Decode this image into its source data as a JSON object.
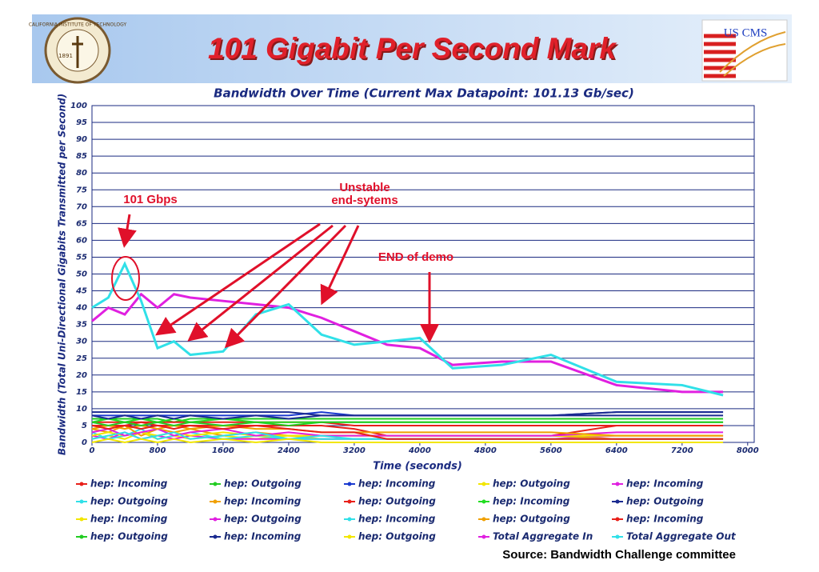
{
  "slide_title": "101 Gigabit Per Second Mark",
  "logos": {
    "left": [
      "CALIFORNIA INSTITUTE OF TECHNOLOGY",
      "1891"
    ],
    "right": "US CMS"
  },
  "source": "Source: Bandwidth Challenge committee",
  "chart_data": {
    "type": "line",
    "title": "Bandwidth Over Time (Current Max Datapoint: 101.13 Gb/sec)",
    "x_label": "Time (seconds)",
    "y_label": "Bandwidth (Total Uni-Directional Gigabits Transmitted per Second)",
    "annotations": [
      "101 Gbps",
      "Unstable",
      "end-sytems",
      "END of demo"
    ],
    "xlim": [
      0,
      8080
    ],
    "xticks": [
      0,
      800,
      1600,
      2400,
      3200,
      4000,
      4800,
      5600,
      6400,
      7200,
      8000
    ],
    "ylim": [
      0,
      100
    ],
    "yticks": [
      0,
      5,
      10,
      15,
      20,
      25,
      30,
      35,
      40,
      45,
      50,
      55,
      60,
      65,
      70,
      75,
      80,
      85,
      90,
      95,
      100
    ],
    "grid": true,
    "x": [
      0,
      200,
      400,
      600,
      800,
      1000,
      1200,
      1600,
      2000,
      2400,
      2800,
      3200,
      3600,
      4000,
      4400,
      5000,
      5600,
      6400,
      7200,
      7700
    ],
    "series": [
      {
        "name": "hep: Incoming",
        "color": "#e8201a",
        "values": [
          5,
          5,
          5,
          6,
          5,
          5,
          5,
          5,
          5,
          5,
          5,
          4,
          2,
          2,
          2,
          2,
          2,
          5,
          5,
          5
        ]
      },
      {
        "name": "hep: Outgoing",
        "color": "#22cc22",
        "values": [
          7,
          7,
          7,
          7,
          7,
          6,
          7,
          7,
          7,
          7,
          7,
          7,
          7,
          7,
          7,
          7,
          7,
          7,
          7,
          7
        ]
      },
      {
        "name": "hep: Incoming",
        "color": "#1a3ad0",
        "values": [
          8,
          8,
          8,
          8,
          8,
          8,
          8,
          8,
          8,
          8,
          9,
          8,
          8,
          8,
          8,
          8,
          8,
          9,
          9,
          9
        ]
      },
      {
        "name": "hep: Outgoing",
        "color": "#f2e600",
        "values": [
          1,
          2,
          1,
          3,
          1,
          2,
          1,
          2,
          1,
          2,
          1,
          1,
          1,
          1,
          1,
          1,
          1,
          1,
          1,
          1
        ]
      },
      {
        "name": "hep: Incoming",
        "color": "#e020e0",
        "values": [
          2,
          1,
          3,
          1,
          2,
          1,
          2,
          1,
          1,
          1,
          1,
          1,
          1,
          1,
          1,
          1,
          1,
          2,
          2,
          2
        ]
      },
      {
        "name": "hep: Outgoing",
        "color": "#30e0e8",
        "values": [
          3,
          1,
          2,
          4,
          1,
          2,
          3,
          1,
          2,
          1,
          1,
          1,
          1,
          1,
          1,
          1,
          1,
          1,
          1,
          1
        ]
      },
      {
        "name": "hep: Incoming",
        "color": "#f0a000",
        "values": [
          4,
          3,
          5,
          2,
          4,
          3,
          4,
          2,
          3,
          2,
          2,
          2,
          2,
          2,
          2,
          2,
          2,
          1,
          1,
          1
        ]
      },
      {
        "name": "hep: Outgoing",
        "color": "#e8201a",
        "values": [
          6,
          6,
          6,
          6,
          6,
          6,
          6,
          6,
          6,
          6,
          6,
          5,
          5,
          5,
          5,
          5,
          5,
          5,
          5,
          5
        ]
      },
      {
        "name": "hep: Incoming",
        "color": "#22dd22",
        "values": [
          6,
          7,
          6,
          7,
          6,
          7,
          6,
          7,
          6,
          6,
          6,
          6,
          6,
          6,
          6,
          6,
          6,
          6,
          6,
          6
        ]
      },
      {
        "name": "hep: Outgoing",
        "color": "#1a2a90",
        "values": [
          9,
          9,
          9,
          9,
          9,
          9,
          9,
          9,
          9,
          9,
          8,
          8,
          8,
          8,
          8,
          8,
          8,
          9,
          9,
          9
        ]
      },
      {
        "name": "hep: Incoming",
        "color": "#f2e600",
        "values": [
          2,
          3,
          2,
          3,
          2,
          3,
          2,
          3,
          2,
          2,
          2,
          2,
          2,
          2,
          2,
          2,
          2,
          2,
          2,
          2
        ]
      },
      {
        "name": "hep: Outgoing",
        "color": "#e020e0",
        "values": [
          3,
          4,
          2,
          3,
          4,
          2,
          3,
          4,
          2,
          3,
          2,
          2,
          2,
          2,
          2,
          2,
          2,
          3,
          3,
          3
        ]
      },
      {
        "name": "hep: Incoming",
        "color": "#30e0e8",
        "values": [
          1,
          2,
          3,
          1,
          2,
          3,
          1,
          2,
          3,
          1,
          2,
          1,
          1,
          1,
          1,
          1,
          1,
          1,
          1,
          1
        ]
      },
      {
        "name": "hep: Outgoing",
        "color": "#f0a000",
        "values": [
          4,
          5,
          4,
          5,
          4,
          5,
          4,
          5,
          4,
          4,
          3,
          3,
          3,
          3,
          3,
          3,
          3,
          2,
          2,
          2
        ]
      },
      {
        "name": "hep: Incoming",
        "color": "#e8201a",
        "values": [
          5,
          4,
          5,
          4,
          5,
          4,
          5,
          4,
          5,
          4,
          3,
          3,
          1,
          1,
          1,
          1,
          1,
          1,
          1,
          1
        ]
      },
      {
        "name": "hep: Outgoing",
        "color": "#22cc22",
        "values": [
          6,
          5,
          6,
          5,
          6,
          5,
          6,
          5,
          6,
          5,
          6,
          6,
          6,
          6,
          6,
          6,
          6,
          6,
          6,
          6
        ]
      },
      {
        "name": "hep: Incoming",
        "color": "#1a2a90",
        "values": [
          8,
          7,
          8,
          7,
          8,
          7,
          8,
          7,
          8,
          7,
          8,
          8,
          8,
          8,
          8,
          8,
          8,
          8,
          8,
          8
        ]
      },
      {
        "name": "hep: Outgoing",
        "color": "#f2e600",
        "values": [
          0,
          1,
          0,
          1,
          0,
          1,
          0,
          1,
          0,
          1,
          0,
          0,
          0,
          0,
          0,
          0,
          0,
          0,
          0,
          0
        ]
      },
      {
        "name": "Total Aggregate In",
        "color": "#e020e0",
        "values": [
          36,
          40,
          38,
          44,
          40,
          44,
          43,
          42,
          41,
          40,
          37,
          33,
          29,
          28,
          23,
          24,
          24,
          17,
          15,
          15
        ]
      },
      {
        "name": "Total Aggregate Out",
        "color": "#30e0e8",
        "values": [
          40,
          43,
          53,
          42,
          28,
          30,
          26,
          27,
          38,
          41,
          32,
          29,
          30,
          31,
          22,
          23,
          26,
          18,
          17,
          14
        ]
      }
    ]
  }
}
